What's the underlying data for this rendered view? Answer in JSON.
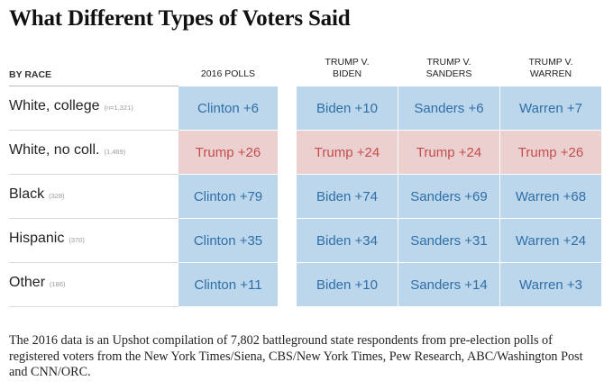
{
  "title": "What Different Types of Voters Said",
  "header": {
    "race_label": "BY RACE",
    "columns": [
      {
        "line1": "",
        "line2": "2016 POLLS"
      },
      {
        "line1": "TRUMP V.",
        "line2": "BIDEN"
      },
      {
        "line1": "TRUMP V.",
        "line2": "SANDERS"
      },
      {
        "line1": "TRUMP V.",
        "line2": "WARREN"
      }
    ]
  },
  "colors": {
    "dem_bg": "#bcd6ec",
    "dem_text": "#2f6fa8",
    "rep_bg": "#eccfcf",
    "rep_text": "#c44d4d"
  },
  "chart_data": {
    "type": "table",
    "title": "What Different Types of Voters Said",
    "row_header": "BY RACE",
    "columns": [
      "2016 POLLS",
      "TRUMP V. BIDEN",
      "TRUMP V. SANDERS",
      "TRUMP V. WARREN"
    ],
    "rows": [
      {
        "label": "White, college",
        "n": "(n=1,321)",
        "cells": [
          {
            "text": "Clinton +6",
            "party": "dem",
            "margin": 6
          },
          {
            "text": "Biden +10",
            "party": "dem",
            "margin": 10
          },
          {
            "text": "Sanders +6",
            "party": "dem",
            "margin": 6
          },
          {
            "text": "Warren +7",
            "party": "dem",
            "margin": 7
          }
        ]
      },
      {
        "label": "White, no coll.",
        "n": "(1,469)",
        "cells": [
          {
            "text": "Trump +26",
            "party": "rep",
            "margin": 26
          },
          {
            "text": "Trump +24",
            "party": "rep",
            "margin": 24
          },
          {
            "text": "Trump +24",
            "party": "rep",
            "margin": 24
          },
          {
            "text": "Trump +26",
            "party": "rep",
            "margin": 26
          }
        ]
      },
      {
        "label": "Black",
        "n": "(328)",
        "cells": [
          {
            "text": "Clinton +79",
            "party": "dem",
            "margin": 79
          },
          {
            "text": "Biden +74",
            "party": "dem",
            "margin": 74
          },
          {
            "text": "Sanders +69",
            "party": "dem",
            "margin": 69
          },
          {
            "text": "Warren +68",
            "party": "dem",
            "margin": 68
          }
        ]
      },
      {
        "label": "Hispanic",
        "n": "(370)",
        "cells": [
          {
            "text": "Clinton +35",
            "party": "dem",
            "margin": 35
          },
          {
            "text": "Biden +34",
            "party": "dem",
            "margin": 34
          },
          {
            "text": "Sanders +31",
            "party": "dem",
            "margin": 31
          },
          {
            "text": "Warren +24",
            "party": "dem",
            "margin": 24
          }
        ]
      },
      {
        "label": "Other",
        "n": "(186)",
        "cells": [
          {
            "text": "Clinton +11",
            "party": "dem",
            "margin": 11
          },
          {
            "text": "Biden +10",
            "party": "dem",
            "margin": 10
          },
          {
            "text": "Sanders +14",
            "party": "dem",
            "margin": 14
          },
          {
            "text": "Warren +3",
            "party": "dem",
            "margin": 3
          }
        ]
      }
    ]
  },
  "footnote": "The 2016 data is an Upshot compilation of 7,802 battleground state respondents from pre-election polls of registered voters from the New York Times/Siena, CBS/New York Times, Pew Research, ABC/Washington Post and CNN/ORC."
}
